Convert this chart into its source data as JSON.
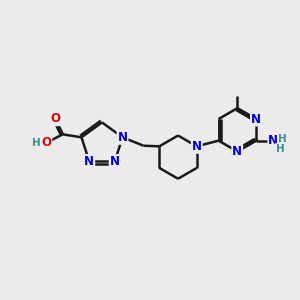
{
  "bg_color": "#ebebeb",
  "bond_color": "#1a1a1a",
  "N_color": "#0000dd",
  "O_color": "#dd0000",
  "H_color": "#3a9090",
  "line_width": 1.8,
  "font_size": 8.5,
  "figsize": [
    3.0,
    3.0
  ],
  "dpi": 100,
  "xlim": [
    0,
    10
  ],
  "ylim": [
    0,
    10
  ]
}
